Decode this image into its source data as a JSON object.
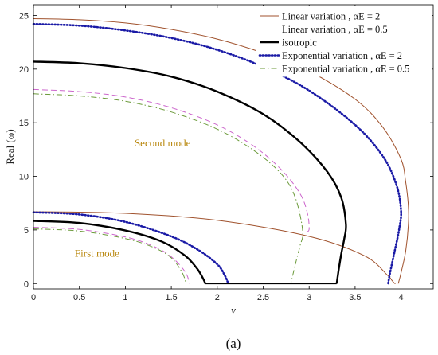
{
  "chart_data": {
    "type": "line",
    "xlabel": "v",
    "ylabel": "Real (ω)",
    "xlim": [
      0,
      4.35
    ],
    "ylim": [
      -0.5,
      26
    ],
    "xticks": [
      "0",
      "0.5",
      "1",
      "1.5",
      "2",
      "2.5",
      "3",
      "3.5",
      "4"
    ],
    "xtick_values": [
      0,
      0.5,
      1,
      1.5,
      2,
      2.5,
      3,
      3.5,
      4
    ],
    "yticks": [
      "0",
      "5",
      "10",
      "15",
      "20",
      "25"
    ],
    "ytick_values": [
      0,
      5,
      10,
      15,
      20,
      25
    ],
    "grid": false,
    "legend_position": "top-right",
    "caption": "(a)",
    "annotations": [
      {
        "text": "Second mode",
        "x": 1.1,
        "y": 12.8,
        "color": "#b8860b"
      },
      {
        "text": "First mode",
        "x": 0.45,
        "y": 2.5,
        "color": "#b8860b"
      }
    ],
    "series": [
      {
        "name": "Linear variation , αE = 2",
        "color": "#a0522d",
        "style": "solid",
        "width": 1.0,
        "modes": [
          {
            "x": [
              0,
              1.0,
              2.0,
              3.0,
              3.6,
              3.85,
              3.9,
              3.92,
              3.93,
              3.94
            ],
            "y": [
              6.7,
              6.55,
              5.9,
              4.4,
              2.6,
              0.8,
              0.3,
              0.1,
              0.02,
              0
            ]
          },
          {
            "x": [
              0,
              0.5,
              1.0,
              1.5,
              2.0,
              2.5,
              3.0,
              3.5,
              3.8,
              4.0,
              4.05,
              4.08,
              4.08,
              4.05,
              4.0,
              3.97
            ],
            "y": [
              24.7,
              24.6,
              24.3,
              23.7,
              22.8,
              21.5,
              19.8,
              17.2,
              14.6,
              11.6,
              9.5,
              7.2,
              5.5,
              3.0,
              1.0,
              0
            ]
          }
        ]
      },
      {
        "name": "Linear variation , αE = 0.5",
        "color": "#cc66cc",
        "style": "dash",
        "width": 1.0,
        "modes": [
          {
            "x": [
              0,
              0.5,
              1.0,
              1.3,
              1.5,
              1.65,
              1.7
            ],
            "y": [
              5.25,
              5.05,
              4.35,
              3.5,
              2.5,
              1.1,
              0
            ]
          },
          {
            "x": [
              0,
              0.5,
              1.0,
              1.5,
              2.0,
              2.4,
              2.7,
              2.9,
              2.98,
              3.0,
              2.97
            ],
            "y": [
              18.1,
              17.9,
              17.4,
              16.4,
              14.8,
              12.8,
              10.6,
              8.4,
              6.6,
              5.1,
              4.8
            ]
          }
        ]
      },
      {
        "name": "isotropic",
        "color": "#000000",
        "style": "solid",
        "width": 2.4,
        "modes": [
          {
            "x": [
              0,
              0.5,
              1.0,
              1.4,
              1.65,
              1.78,
              1.85,
              1.87
            ],
            "y": [
              5.85,
              5.65,
              4.95,
              3.9,
              2.6,
              1.4,
              0.4,
              0
            ]
          },
          {
            "x": [
              0,
              0.5,
              1.0,
              1.5,
              2.0,
              2.5,
              2.9,
              3.2,
              3.35,
              3.4,
              3.38,
              3.35,
              3.32,
              3.3
            ],
            "y": [
              20.7,
              20.55,
              20.1,
              19.3,
              17.9,
              15.8,
              13.2,
              10.4,
              8.0,
              5.5,
              4.1,
              2.8,
              1.2,
              0
            ]
          }
        ]
      },
      {
        "name": "Exponential variation , αE = 2",
        "color": "#1a1aa6",
        "style": "dot",
        "width": 2.6,
        "modes": [
          {
            "x": [
              0,
              0.5,
              1.0,
              1.5,
              1.8,
              2.0,
              2.08,
              2.12
            ],
            "y": [
              6.65,
              6.45,
              5.75,
              4.4,
              3.1,
              1.8,
              0.8,
              0
            ]
          },
          {
            "x": [
              0,
              0.5,
              1.0,
              1.5,
              2.0,
              2.5,
              3.0,
              3.5,
              3.8,
              3.95,
              4.0,
              3.98,
              3.93,
              3.88,
              3.86
            ],
            "y": [
              24.2,
              24.05,
              23.6,
              22.9,
              21.8,
              20.2,
              18.0,
              14.8,
              11.9,
              9.2,
              6.8,
              5.1,
              3.0,
              1.0,
              0
            ]
          }
        ]
      },
      {
        "name": "Exponential variation , αE = 0.5",
        "color": "#6b9a3a",
        "style": "dashdot",
        "width": 1.0,
        "modes": [
          {
            "x": [
              0,
              0.5,
              1.0,
              1.3,
              1.5,
              1.62,
              1.66
            ],
            "y": [
              5.1,
              4.9,
              4.2,
              3.4,
              2.4,
              1.0,
              0
            ]
          },
          {
            "x": [
              0,
              0.5,
              1.0,
              1.5,
              2.0,
              2.4,
              2.7,
              2.85,
              2.93,
              2.9,
              2.85,
              2.8
            ],
            "y": [
              17.7,
              17.5,
              17.0,
              16.0,
              14.4,
              12.4,
              10.2,
              8.0,
              4.9,
              3.5,
              1.8,
              0
            ]
          }
        ]
      }
    ],
    "baseline": {
      "color": "#000000",
      "x": [
        1.87,
        3.3
      ],
      "y": [
        0,
        0
      ]
    }
  }
}
